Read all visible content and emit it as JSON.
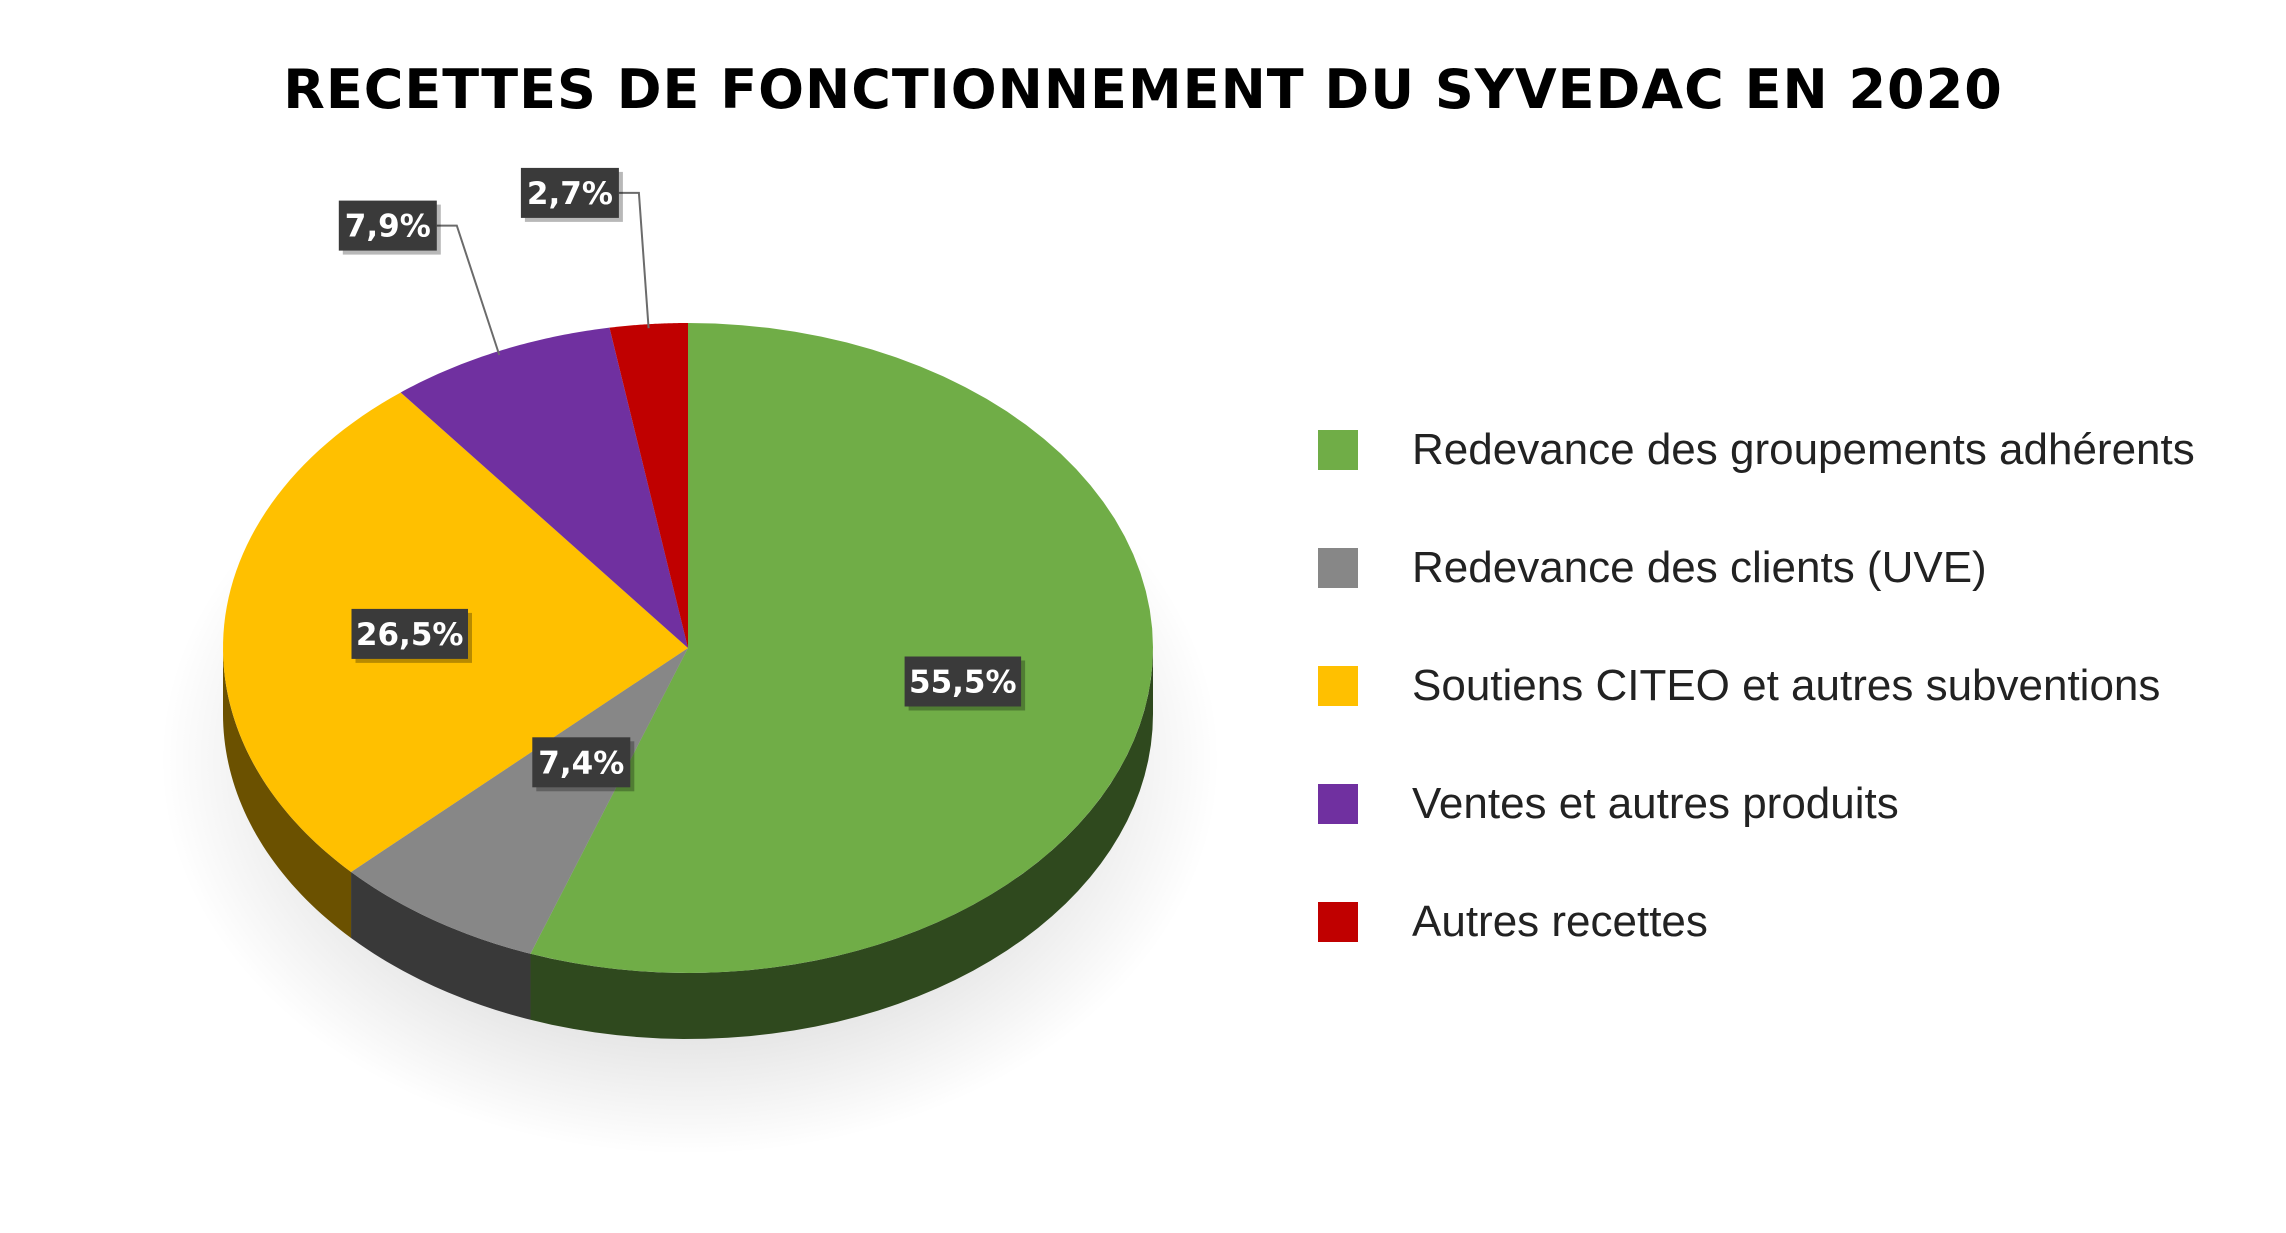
{
  "chart_data": {
    "type": "pie",
    "title": "RECETTES DE FONCTIONNEMENT DU SYVEDAC EN 2020",
    "categories": [
      "Redevance des groupements adhérents",
      "Redevance des clients (UVE)",
      "Soutiens CITEO et autres subventions",
      "Ventes et autres produits",
      "Autres recettes"
    ],
    "values": [
      55.5,
      7.4,
      26.5,
      7.9,
      2.7
    ],
    "data_labels": [
      "55,5%",
      "7,4%",
      "26,5%",
      "7,9%",
      "2,7%"
    ],
    "colors": [
      "#70ad47",
      "#878787",
      "#ffc000",
      "#7030a0",
      "#c00000"
    ],
    "legend_position": "right",
    "style": "3d"
  }
}
